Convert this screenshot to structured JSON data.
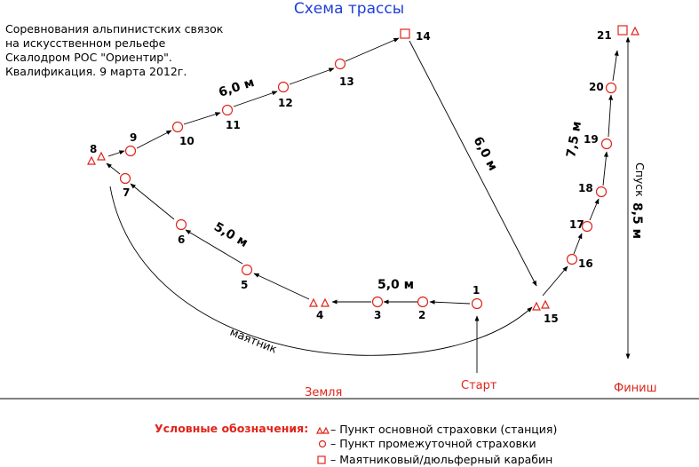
{
  "title": "Схема трассы",
  "description": [
    "Соревнования альпинистских связок",
    "на искусственном рельефе",
    "Скалодром РОС \"Ориентир\".",
    "Квалификация. 9 марта 2012г."
  ],
  "points": [
    {
      "label": "1",
      "type": "circle"
    },
    {
      "label": "2",
      "type": "circle"
    },
    {
      "label": "3",
      "type": "circle"
    },
    {
      "label": "4",
      "type": "station"
    },
    {
      "label": "5",
      "type": "circle"
    },
    {
      "label": "6",
      "type": "circle"
    },
    {
      "label": "7",
      "type": "circle"
    },
    {
      "label": "8",
      "type": "station"
    },
    {
      "label": "9",
      "type": "circle"
    },
    {
      "label": "10",
      "type": "circle"
    },
    {
      "label": "11",
      "type": "circle"
    },
    {
      "label": "12",
      "type": "circle"
    },
    {
      "label": "13",
      "type": "circle"
    },
    {
      "label": "14",
      "type": "carabiner"
    },
    {
      "label": "15",
      "type": "station"
    },
    {
      "label": "16",
      "type": "circle"
    },
    {
      "label": "17",
      "type": "circle"
    },
    {
      "label": "18",
      "type": "circle"
    },
    {
      "label": "19",
      "type": "circle"
    },
    {
      "label": "20",
      "type": "circle"
    },
    {
      "label": "21",
      "type": "carabiner-station"
    }
  ],
  "distances": {
    "d_1_4": "5,0 м",
    "d_4_7": "5,0 м",
    "d_9_12": "6,0 м",
    "d_14_15": "6,0 м",
    "d_16_21": "7,5 м",
    "descent": "8,5 м"
  },
  "labels": {
    "pendulum": "маятник",
    "descent_word": "Спуск",
    "ground": "Земля",
    "start": "Старт",
    "finish": "Финиш"
  },
  "legend": {
    "title": "Условные обозначения:",
    "items": [
      {
        "icon": "station-icon",
        "text": "– Пункт основной страховки (станция)"
      },
      {
        "icon": "circle-icon",
        "text": "– Пункт промежуточной страховки"
      },
      {
        "icon": "square-icon",
        "text": "– Маятниковый/дюльферный карабин"
      }
    ]
  },
  "colors": {
    "title": "#1f3fd6",
    "accent": "#e0241a",
    "line": "#000000"
  }
}
